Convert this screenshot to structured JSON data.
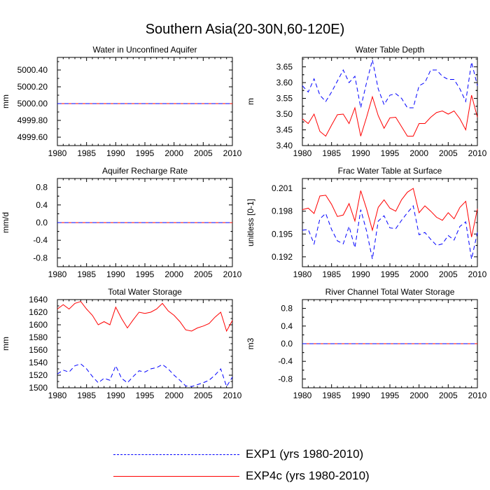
{
  "title": "Southern Asia(20-30N,60-120E)",
  "colors": {
    "exp1": "#0000ff",
    "exp4c": "#ff0000",
    "axis": "#000000"
  },
  "legend": [
    {
      "label": "EXP1 (yrs 1980-2010)",
      "color": "#0000ff",
      "style": "dashed"
    },
    {
      "label": "EXP4c (yrs 1980-2010)",
      "color": "#ff0000",
      "style": "solid"
    }
  ],
  "chart_data": [
    {
      "type": "line",
      "title": "Water in Unconfined Aquifer",
      "xlabel": "",
      "ylabel": "mm",
      "xlim": [
        1980,
        2010
      ],
      "ylim": [
        4999.5,
        5000.55
      ],
      "xticks": [
        1980,
        1985,
        1990,
        1995,
        2000,
        2005,
        2010
      ],
      "xtick_labels": [
        "1980",
        "1985",
        "1990",
        "1995",
        "2000",
        "2005",
        "2010"
      ],
      "yticks": [
        4999.6,
        4999.8,
        5000.0,
        5000.2,
        5000.4
      ],
      "ytick_labels": [
        "4999.60",
        "4999.80",
        "5000.00",
        "5000.20",
        "5000.40"
      ],
      "x": [
        1980,
        2010
      ],
      "series": [
        {
          "name": "EXP4c",
          "color": "#ff0000",
          "style": "solid",
          "values": [
            5000.0,
            5000.0
          ]
        },
        {
          "name": "EXP1",
          "color": "#0000ff",
          "style": "dashed",
          "values": [
            5000.0,
            5000.0
          ]
        }
      ]
    },
    {
      "type": "line",
      "title": "Water Table Depth",
      "xlabel": "",
      "ylabel": "m",
      "xlim": [
        1980,
        2010
      ],
      "ylim": [
        3.4,
        3.68
      ],
      "xticks": [
        1980,
        1985,
        1990,
        1995,
        2000,
        2005,
        2010
      ],
      "xtick_labels": [
        "1980",
        "1985",
        "1990",
        "1995",
        "2000",
        "2005",
        "2010"
      ],
      "yticks": [
        3.4,
        3.45,
        3.5,
        3.55,
        3.6,
        3.65
      ],
      "ytick_labels": [
        "3.40",
        "3.45",
        "3.50",
        "3.55",
        "3.60",
        "3.65"
      ],
      "x": [
        1980,
        1981,
        1982,
        1983,
        1984,
        1985,
        1986,
        1987,
        1988,
        1989,
        1990,
        1991,
        1992,
        1993,
        1994,
        1995,
        1996,
        1997,
        1998,
        1999,
        2000,
        2001,
        2002,
        2003,
        2004,
        2005,
        2006,
        2007,
        2008,
        2009,
        2010
      ],
      "series": [
        {
          "name": "EXP4c",
          "color": "#ff0000",
          "style": "solid",
          "values": [
            3.485,
            3.47,
            3.5,
            3.445,
            3.43,
            3.465,
            3.498,
            3.5,
            3.47,
            3.52,
            3.43,
            3.49,
            3.555,
            3.495,
            3.455,
            3.488,
            3.49,
            3.46,
            3.43,
            3.43,
            3.47,
            3.47,
            3.49,
            3.505,
            3.51,
            3.5,
            3.51,
            3.485,
            3.45,
            3.56,
            3.49
          ]
        },
        {
          "name": "EXP1",
          "color": "#0000ff",
          "style": "dashed",
          "values": [
            3.59,
            3.57,
            3.612,
            3.56,
            3.54,
            3.57,
            3.605,
            3.64,
            3.6,
            3.62,
            3.52,
            3.6,
            3.672,
            3.58,
            3.53,
            3.56,
            3.565,
            3.55,
            3.52,
            3.52,
            3.59,
            3.6,
            3.64,
            3.64,
            3.62,
            3.61,
            3.61,
            3.58,
            3.54,
            3.665,
            3.59
          ]
        }
      ]
    },
    {
      "type": "line",
      "title": "Aquifer Recharge Rate",
      "xlabel": "",
      "ylabel": "mm/d",
      "xlim": [
        1980,
        2010
      ],
      "ylim": [
        -1.0,
        1.0
      ],
      "xticks": [
        1980,
        1985,
        1990,
        1995,
        2000,
        2005,
        2010
      ],
      "xtick_labels": [
        "1980",
        "1985",
        "1990",
        "1995",
        "2000",
        "2005",
        "2010"
      ],
      "yticks": [
        -0.8,
        -0.4,
        0.0,
        0.4,
        0.8
      ],
      "ytick_labels": [
        "-0.8",
        "-0.4",
        "0.0",
        "0.4",
        "0.8"
      ],
      "x": [
        1980,
        2010
      ],
      "series": [
        {
          "name": "EXP4c",
          "color": "#ff0000",
          "style": "solid",
          "values": [
            0.0,
            0.0
          ]
        },
        {
          "name": "EXP1",
          "color": "#0000ff",
          "style": "dashed",
          "values": [
            0.0,
            0.0
          ]
        }
      ]
    },
    {
      "type": "line",
      "title": "Frac Water Table at Surface",
      "xlabel": "",
      "ylabel": "unitless [0-1]",
      "xlim": [
        1980,
        2010
      ],
      "ylim": [
        0.1907,
        0.2023
      ],
      "xticks": [
        1980,
        1985,
        1990,
        1995,
        2000,
        2005,
        2010
      ],
      "xtick_labels": [
        "1980",
        "1985",
        "1990",
        "1995",
        "2000",
        "2005",
        "2010"
      ],
      "yticks": [
        0.192,
        0.195,
        0.198,
        0.201
      ],
      "ytick_labels": [
        "0.192",
        "0.195",
        "0.198",
        "0.201"
      ],
      "x": [
        1980,
        1981,
        1982,
        1983,
        1984,
        1985,
        1986,
        1987,
        1988,
        1989,
        1990,
        1991,
        1992,
        1993,
        1994,
        1995,
        1996,
        1997,
        1998,
        1999,
        2000,
        2001,
        2002,
        2003,
        2004,
        2005,
        2006,
        2007,
        2008,
        2009,
        2010
      ],
      "series": [
        {
          "name": "EXP4c",
          "color": "#ff0000",
          "style": "solid",
          "values": [
            0.1982,
            0.1984,
            0.1977,
            0.2,
            0.2001,
            0.1989,
            0.1973,
            0.1975,
            0.199,
            0.1967,
            0.2007,
            0.1983,
            0.1955,
            0.1985,
            0.1995,
            0.1984,
            0.198,
            0.1995,
            0.2005,
            0.201,
            0.1978,
            0.1987,
            0.198,
            0.1972,
            0.1968,
            0.1978,
            0.197,
            0.1985,
            0.1993,
            0.1946,
            0.1983
          ]
        },
        {
          "name": "EXP1",
          "color": "#0000ff",
          "style": "dashed",
          "values": [
            0.1955,
            0.1956,
            0.1937,
            0.197,
            0.1977,
            0.1956,
            0.1941,
            0.1937,
            0.196,
            0.1932,
            0.1982,
            0.1954,
            0.1917,
            0.1967,
            0.1974,
            0.1958,
            0.1957,
            0.1968,
            0.1978,
            0.1987,
            0.1949,
            0.1952,
            0.1943,
            0.1935,
            0.1937,
            0.1948,
            0.1942,
            0.196,
            0.1966,
            0.1917,
            0.1952
          ]
        }
      ]
    },
    {
      "type": "line",
      "title": "Total Water Storage",
      "xlabel": "",
      "ylabel": "mm",
      "xlim": [
        1980,
        2010
      ],
      "ylim": [
        1500,
        1640
      ],
      "xticks": [
        1980,
        1985,
        1990,
        1995,
        2000,
        2005,
        2010
      ],
      "xtick_labels": [
        "1980",
        "1985",
        "1990",
        "1995",
        "2000",
        "2005",
        "2010"
      ],
      "yticks": [
        1500,
        1520,
        1540,
        1560,
        1580,
        1600,
        1620,
        1640
      ],
      "ytick_labels": [
        "1500",
        "1520",
        "1540",
        "1560",
        "1580",
        "1600",
        "1620",
        "1640"
      ],
      "x": [
        1980,
        1981,
        1982,
        1983,
        1984,
        1985,
        1986,
        1987,
        1988,
        1989,
        1990,
        1991,
        1992,
        1993,
        1994,
        1995,
        1996,
        1997,
        1998,
        1999,
        2000,
        2001,
        2002,
        2003,
        2004,
        2005,
        2006,
        2007,
        2008,
        2009,
        2010
      ],
      "series": [
        {
          "name": "EXP4c",
          "color": "#ff0000",
          "style": "solid",
          "values": [
            1625,
            1632,
            1625,
            1634,
            1637,
            1625,
            1615,
            1600,
            1605,
            1600,
            1628,
            1610,
            1595,
            1608,
            1620,
            1618,
            1620,
            1625,
            1634,
            1622,
            1615,
            1605,
            1592,
            1590,
            1595,
            1598,
            1602,
            1612,
            1620,
            1590,
            1607
          ]
        },
        {
          "name": "EXP1",
          "color": "#0000ff",
          "style": "dashed",
          "values": [
            1522,
            1528,
            1525,
            1535,
            1538,
            1530,
            1518,
            1508,
            1515,
            1512,
            1535,
            1515,
            1508,
            1518,
            1527,
            1525,
            1530,
            1532,
            1537,
            1530,
            1520,
            1512,
            1503,
            1502,
            1505,
            1508,
            1512,
            1520,
            1530,
            1502,
            1517
          ]
        }
      ]
    },
    {
      "type": "line",
      "title": "River Channel Total Water Storage",
      "xlabel": "",
      "ylabel": "m3",
      "xlim": [
        1980,
        2010
      ],
      "ylim": [
        -1.0,
        1.0
      ],
      "xticks": [
        1980,
        1985,
        1990,
        1995,
        2000,
        2005,
        2010
      ],
      "xtick_labels": [
        "1980",
        "1985",
        "1990",
        "1995",
        "2000",
        "2005",
        "2010"
      ],
      "yticks": [
        -0.8,
        -0.4,
        0.0,
        0.4,
        0.8
      ],
      "ytick_labels": [
        "-0.8",
        "-0.4",
        "0.0",
        "0.4",
        "0.8"
      ],
      "x": [
        1980,
        2010
      ],
      "series": [
        {
          "name": "EXP4c",
          "color": "#ff0000",
          "style": "solid",
          "values": [
            0.0,
            0.0
          ]
        },
        {
          "name": "EXP1",
          "color": "#0000ff",
          "style": "dashed",
          "values": [
            0.0,
            0.0
          ]
        }
      ]
    }
  ]
}
